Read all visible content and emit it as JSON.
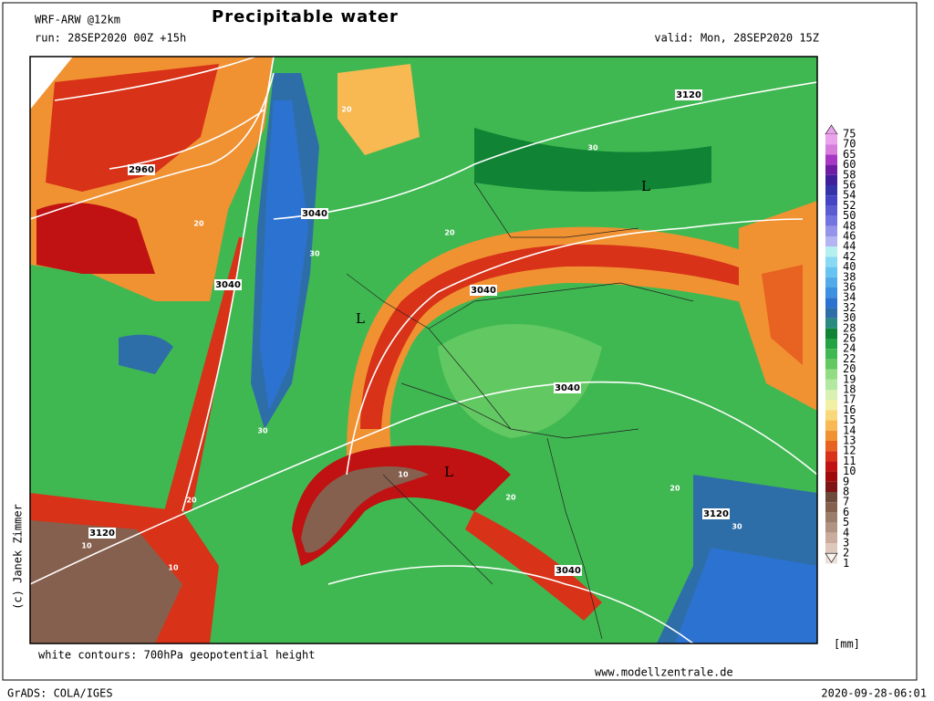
{
  "header": {
    "model": "WRF-ARW @12km",
    "title": "Precipitable water",
    "run": "run: 28SEP2020 00Z +15h",
    "valid": "valid: Mon, 28SEP2020 15Z"
  },
  "map": {
    "contour_labels": [
      "2960",
      "3040",
      "3040",
      "3040",
      "3040",
      "3120",
      "3120",
      "3120",
      "3040",
      "L",
      "L",
      "L",
      "20",
      "20",
      "20",
      "20",
      "20",
      "20",
      "30",
      "30",
      "30",
      "30",
      "10",
      "10",
      "10"
    ]
  },
  "legend": {
    "unit": "[mm]",
    "items": [
      {
        "label": "75",
        "color": "#eaa2ea"
      },
      {
        "label": "70",
        "color": "#d67cdc"
      },
      {
        "label": "65",
        "color": "#a838c4"
      },
      {
        "label": "60",
        "color": "#6e1ca4"
      },
      {
        "label": "58",
        "color": "#40209a"
      },
      {
        "label": "56",
        "color": "#3434a8"
      },
      {
        "label": "54",
        "color": "#4444c4"
      },
      {
        "label": "52",
        "color": "#5c5cd2"
      },
      {
        "label": "50",
        "color": "#7474e0"
      },
      {
        "label": "48",
        "color": "#9494ea"
      },
      {
        "label": "46",
        "color": "#b4b4f2"
      },
      {
        "label": "44",
        "color": "#b4f0f0"
      },
      {
        "label": "42",
        "color": "#88daf2"
      },
      {
        "label": "40",
        "color": "#66c4f0"
      },
      {
        "label": "38",
        "color": "#52aae8"
      },
      {
        "label": "36",
        "color": "#3c90e0"
      },
      {
        "label": "34",
        "color": "#2c72d0"
      },
      {
        "label": "32",
        "color": "#2e6ea8"
      },
      {
        "label": "30",
        "color": "#2a8a80"
      },
      {
        "label": "28",
        "color": "#108434"
      },
      {
        "label": "26",
        "color": "#22a242"
      },
      {
        "label": "24",
        "color": "#40b852"
      },
      {
        "label": "22",
        "color": "#62c862"
      },
      {
        "label": "20",
        "color": "#92dc82"
      },
      {
        "label": "19",
        "color": "#b2e8a2"
      },
      {
        "label": "18",
        "color": "#d8f0b2"
      },
      {
        "label": "17",
        "color": "#f2f0a2"
      },
      {
        "label": "16",
        "color": "#f8d87a"
      },
      {
        "label": "15",
        "color": "#f8b852"
      },
      {
        "label": "14",
        "color": "#f09232"
      },
      {
        "label": "13",
        "color": "#e86222"
      },
      {
        "label": "12",
        "color": "#d83218"
      },
      {
        "label": "11",
        "color": "#c01212"
      },
      {
        "label": "10",
        "color": "#a00a0a"
      },
      {
        "label": "9",
        "color": "#7e1414"
      },
      {
        "label": "8",
        "color": "#6c4a3c"
      },
      {
        "label": "7",
        "color": "#86604e"
      },
      {
        "label": "6",
        "color": "#9c7c6a"
      },
      {
        "label": "5",
        "color": "#b29282"
      },
      {
        "label": "4",
        "color": "#caac9e"
      },
      {
        "label": "3",
        "color": "#dec8bc"
      },
      {
        "label": "2",
        "color": "#eee0d8"
      },
      {
        "label": "1",
        "color": "#faf4f0"
      }
    ]
  },
  "footer": {
    "credit": "(c) Janek Zimmer",
    "note": "white contours: 700hPa geopotential height",
    "site": "www.modellzentrale.de",
    "software": "GrADS: COLA/IGES",
    "timestamp": "2020-09-28-06:01"
  }
}
